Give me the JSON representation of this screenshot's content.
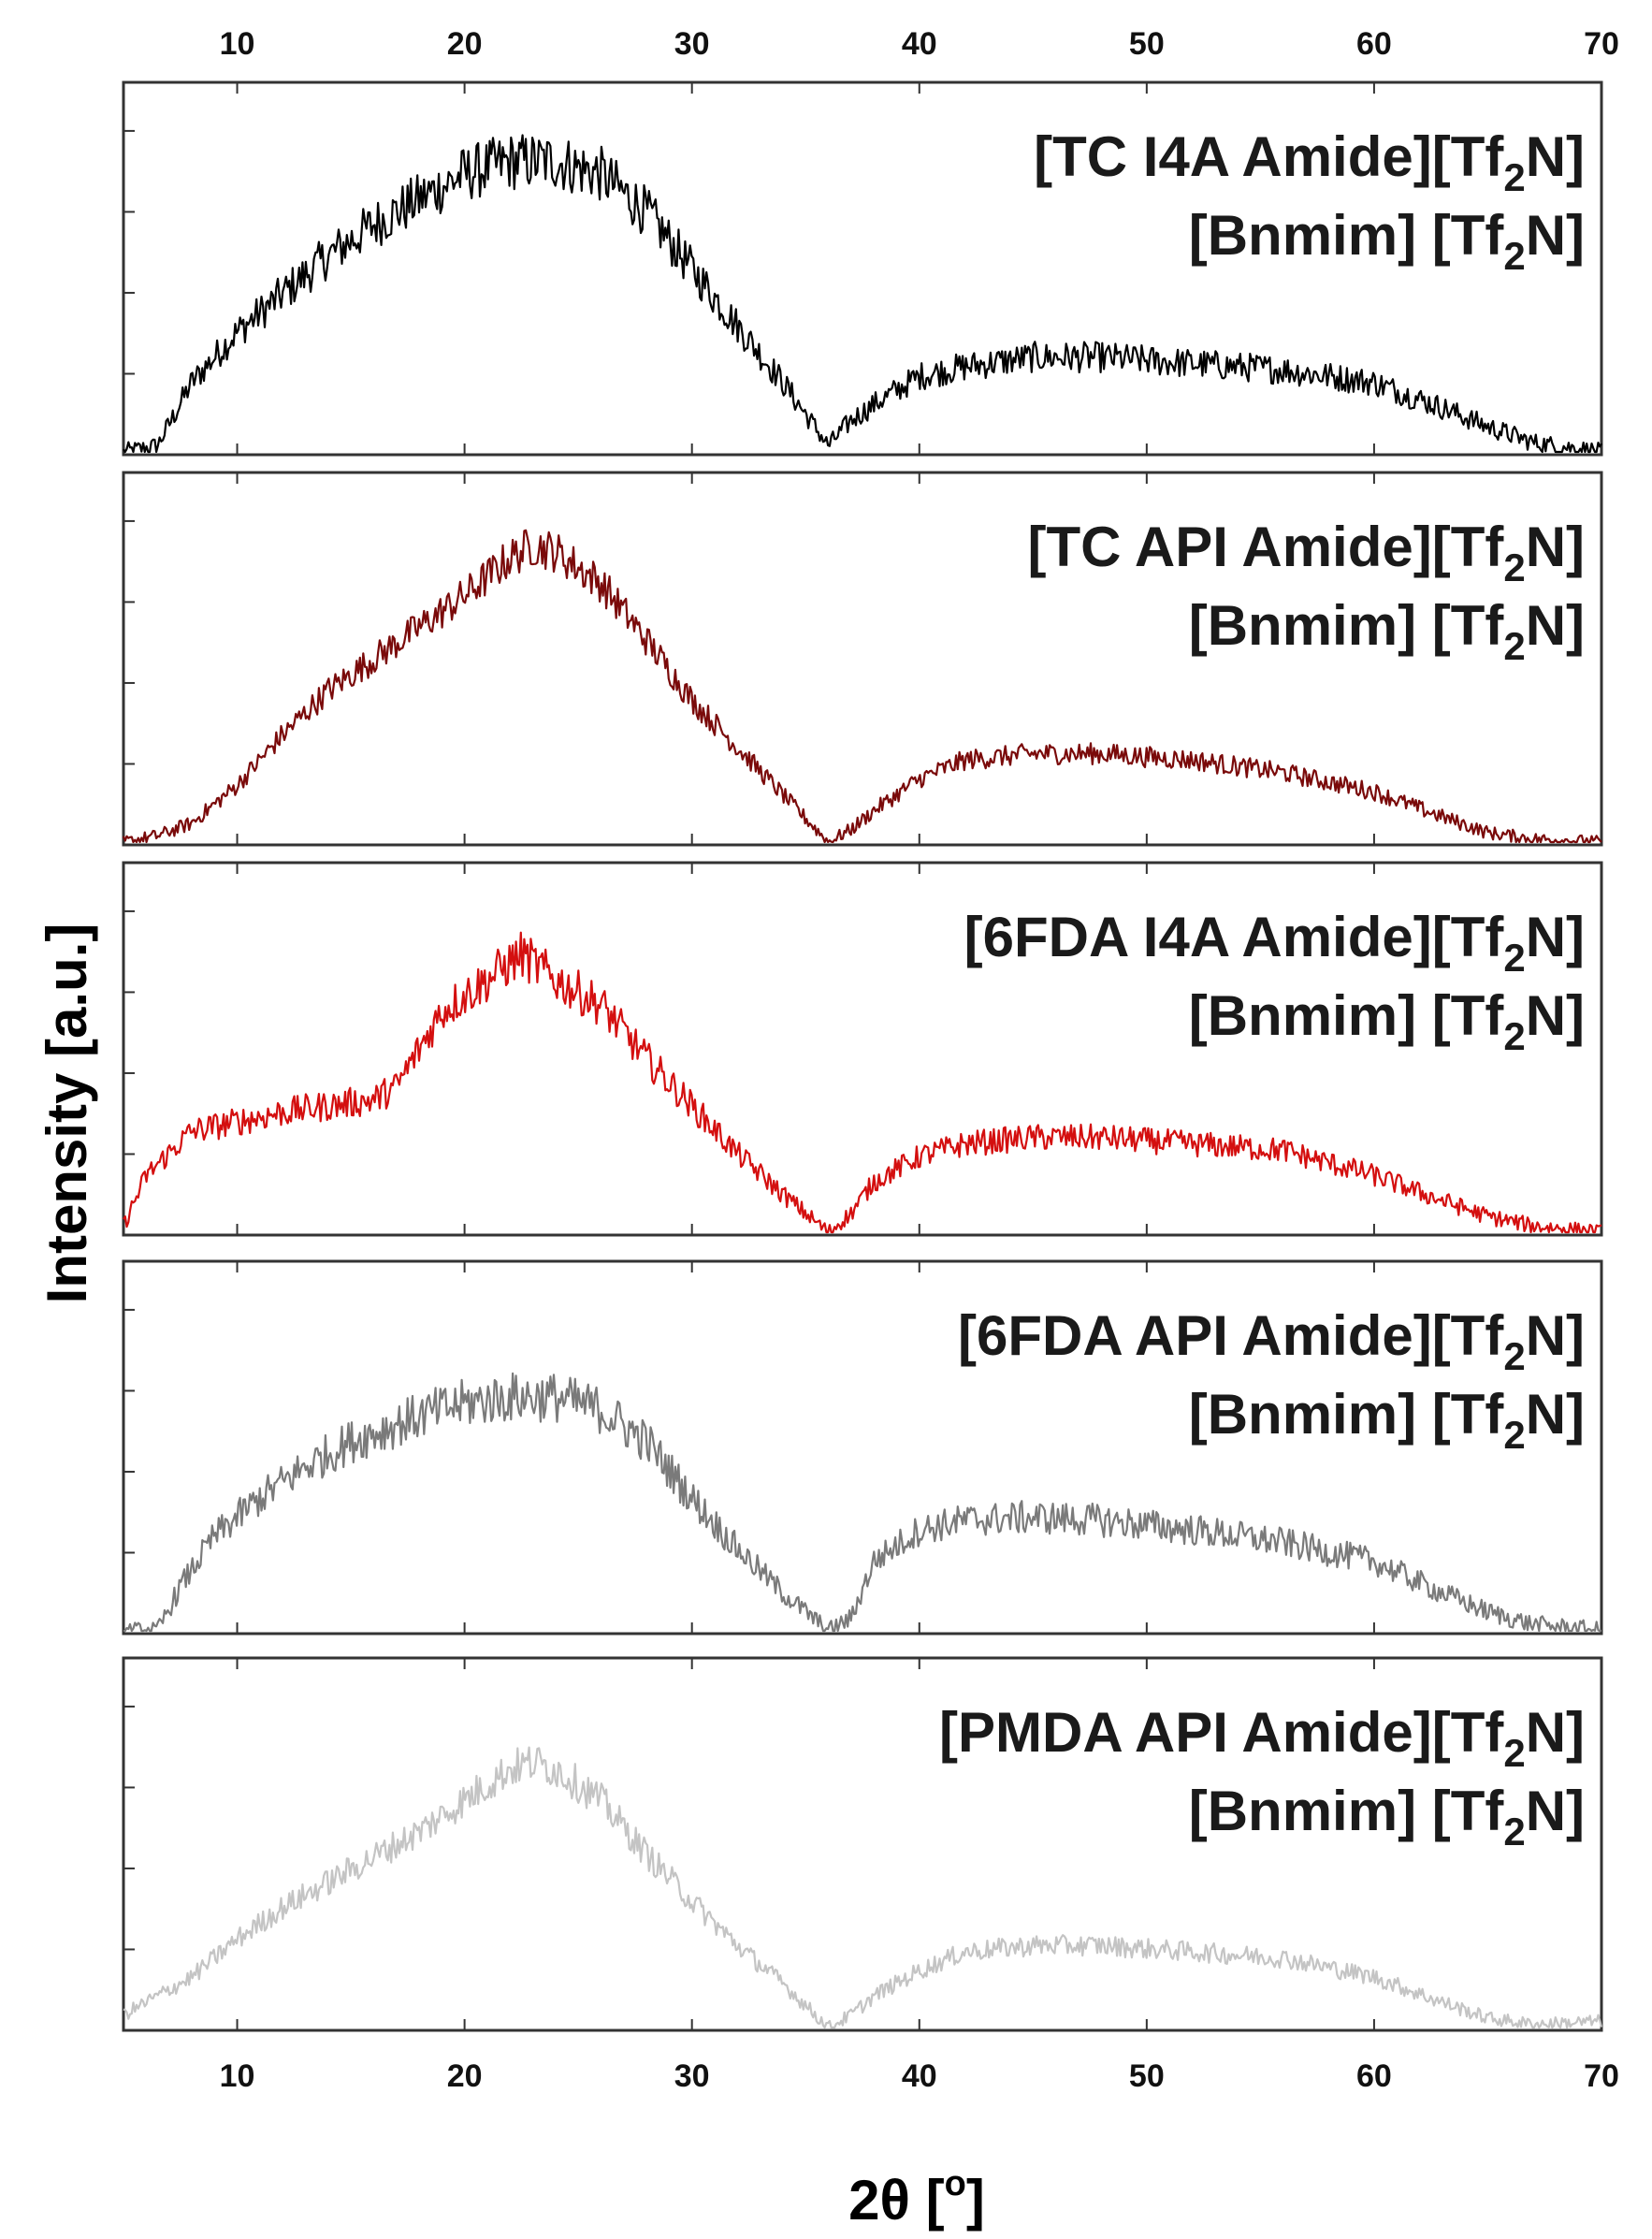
{
  "chart_data": {
    "type": "line",
    "title": "",
    "xlabel": "2θ [°]",
    "xlabel_parts": {
      "main": "2θ [",
      "sup": "o",
      "close": "]"
    },
    "ylabel": "Intensity [a.u.]",
    "xlim": [
      5,
      70
    ],
    "xticks": [
      10,
      20,
      30,
      40,
      50,
      60,
      70
    ],
    "top_xticks": [
      10,
      20,
      30,
      40,
      50,
      60,
      70
    ],
    "ylim": [
      0,
      1.15
    ],
    "y_tick_labels_shown": false,
    "grid": false,
    "series": [
      {
        "name": "[TC I4A Amide][Tf2N] [Bnmim] [Tf2N]",
        "label_line1": {
          "main": "[TC I4A Amide][Tf",
          "sub": "2",
          "close": "N]"
        },
        "label_line2": {
          "main": "[Bnmim] [Tf",
          "sub": "2",
          "close": "N]"
        },
        "color": "#000000",
        "noise": 0.07,
        "x": [
          5,
          6.5,
          8,
          10,
          12,
          14,
          16,
          18,
          20,
          22,
          24,
          26,
          28,
          30,
          32,
          34,
          36,
          37,
          38,
          40,
          42,
          45,
          48,
          52,
          56,
          60,
          63,
          65,
          67,
          70
        ],
        "y": [
          0.0,
          0.02,
          0.22,
          0.38,
          0.5,
          0.62,
          0.72,
          0.8,
          0.88,
          0.92,
          0.92,
          0.88,
          0.76,
          0.58,
          0.4,
          0.22,
          0.02,
          0.1,
          0.15,
          0.24,
          0.27,
          0.3,
          0.3,
          0.28,
          0.26,
          0.22,
          0.14,
          0.08,
          0.03,
          0.0
        ]
      },
      {
        "name": "[TC API Amide][Tf2N] [Bnmim] [Tf2N]",
        "label_line1": {
          "main": "[TC API Amide][Tf",
          "sub": "2",
          "close": "N]"
        },
        "label_line2": {
          "main": "[Bnmim] [Tf",
          "sub": "2",
          "close": "N]"
        },
        "color": "#7a0a0a",
        "noise": 0.05,
        "x": [
          5,
          6.5,
          8,
          10,
          12,
          14,
          16,
          18,
          20,
          22,
          23,
          24,
          26,
          28,
          30,
          32,
          34,
          36,
          37,
          38,
          40,
          42,
          45,
          48,
          52,
          56,
          60,
          63,
          65,
          67,
          70
        ],
        "y": [
          0.0,
          0.02,
          0.06,
          0.18,
          0.34,
          0.48,
          0.58,
          0.68,
          0.78,
          0.9,
          0.94,
          0.92,
          0.82,
          0.64,
          0.45,
          0.3,
          0.15,
          0.0,
          0.04,
          0.1,
          0.2,
          0.26,
          0.28,
          0.28,
          0.26,
          0.22,
          0.16,
          0.08,
          0.03,
          0.01,
          0.0
        ]
      },
      {
        "name": "[6FDA I4A Amide][Tf2N] [Bnmim] [Tf2N]",
        "label_line1": {
          "main": "[6FDA I4A Amide][Tf",
          "sub": "2",
          "close": "N]"
        },
        "label_line2": {
          "main": "[Bnmim] [Tf",
          "sub": "2",
          "close": "N]"
        },
        "color": "#d40f0f",
        "noise": 0.06,
        "x": [
          5,
          6,
          8,
          10,
          12,
          14,
          16,
          17,
          19,
          21,
          22.5,
          24,
          26,
          28,
          30,
          32,
          34,
          36,
          37,
          38,
          40,
          42,
          45,
          48,
          52,
          56,
          60,
          63,
          65,
          67,
          70
        ],
        "y": [
          0.02,
          0.18,
          0.32,
          0.35,
          0.38,
          0.4,
          0.42,
          0.46,
          0.7,
          0.8,
          0.88,
          0.8,
          0.72,
          0.55,
          0.4,
          0.25,
          0.12,
          0.0,
          0.06,
          0.16,
          0.24,
          0.28,
          0.3,
          0.3,
          0.28,
          0.26,
          0.18,
          0.1,
          0.05,
          0.02,
          0.0
        ]
      },
      {
        "name": "[6FDA API Amide][Tf2N] [Bnmim] [Tf2N]",
        "label_line1": {
          "main": "[6FDA API Amide][Tf",
          "sub": "2",
          "close": "N]"
        },
        "label_line2": {
          "main": "[Bnmim] [Tf",
          "sub": "2",
          "close": "N]"
        },
        "color": "#7a7a7a",
        "noise": 0.07,
        "x": [
          5,
          6.5,
          7.5,
          9,
          11,
          13,
          15,
          18,
          20,
          22,
          24,
          26,
          28,
          30,
          32,
          34,
          36,
          37,
          38,
          40,
          42,
          45,
          48,
          52,
          56,
          60,
          63,
          65,
          67,
          70
        ],
        "y": [
          0.0,
          0.0,
          0.14,
          0.3,
          0.42,
          0.52,
          0.6,
          0.68,
          0.72,
          0.74,
          0.74,
          0.7,
          0.6,
          0.42,
          0.26,
          0.12,
          0.0,
          0.04,
          0.22,
          0.32,
          0.35,
          0.36,
          0.35,
          0.32,
          0.28,
          0.22,
          0.12,
          0.06,
          0.02,
          0.0
        ]
      },
      {
        "name": "[PMDA API Amide][Tf2N] [Bnmim] [Tf2N]",
        "label_line1": {
          "main": "[PMDA API Amide][Tf",
          "sub": "2",
          "close": "N]"
        },
        "label_line2": {
          "main": "[Bnmim] [Tf",
          "sub": "2",
          "close": "N]"
        },
        "color": "#c4c4c4",
        "noise": 0.05,
        "x": [
          5,
          6,
          8,
          10,
          12,
          14,
          16,
          18,
          20,
          22,
          23,
          24,
          26,
          28,
          30,
          32,
          34,
          36,
          37,
          38,
          40,
          42,
          45,
          48,
          52,
          56,
          60,
          63,
          65,
          67,
          70
        ],
        "y": [
          0.04,
          0.08,
          0.16,
          0.28,
          0.38,
          0.46,
          0.54,
          0.62,
          0.72,
          0.82,
          0.84,
          0.82,
          0.72,
          0.55,
          0.4,
          0.26,
          0.14,
          0.0,
          0.04,
          0.1,
          0.18,
          0.24,
          0.26,
          0.26,
          0.24,
          0.22,
          0.16,
          0.08,
          0.03,
          0.01,
          0.02
        ]
      }
    ]
  }
}
